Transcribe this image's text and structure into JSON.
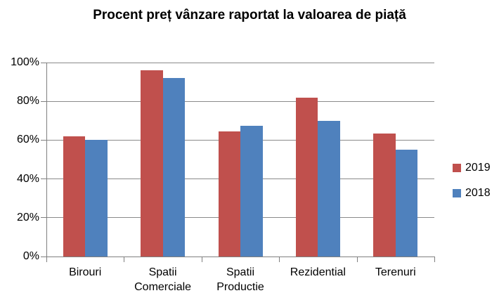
{
  "chart_data": {
    "type": "bar",
    "title": "Procent preț vânzare raportat la valoarea de piață",
    "categories": [
      "Birouri",
      "Spatii Comerciale",
      "Spatii Productie",
      "Rezidential",
      "Terenuri"
    ],
    "category_label_lines": [
      [
        "Birouri"
      ],
      [
        "Spatii",
        "Comerciale"
      ],
      [
        "Spatii",
        "Productie"
      ],
      [
        "Rezidential"
      ],
      [
        "Terenuri"
      ]
    ],
    "series": [
      {
        "name": "2019",
        "color": "#C0504D",
        "values": [
          62,
          96,
          64.5,
          82,
          63.5
        ]
      },
      {
        "name": "2018",
        "color": "#4F81BD",
        "values": [
          60,
          92,
          67.5,
          70,
          55
        ]
      }
    ],
    "xlabel": "",
    "ylabel": "",
    "ylim": [
      0,
      100
    ],
    "y_ticks": [
      "0%",
      "20%",
      "40%",
      "60%",
      "80%",
      "100%"
    ],
    "y_tick_values": [
      0,
      20,
      40,
      60,
      80,
      100
    ],
    "grid": true,
    "legend_position": "right"
  },
  "colors": {
    "grid": "#8a8a8a",
    "axis": "#7f7f7f",
    "text": "#000000",
    "background": "#ffffff"
  }
}
